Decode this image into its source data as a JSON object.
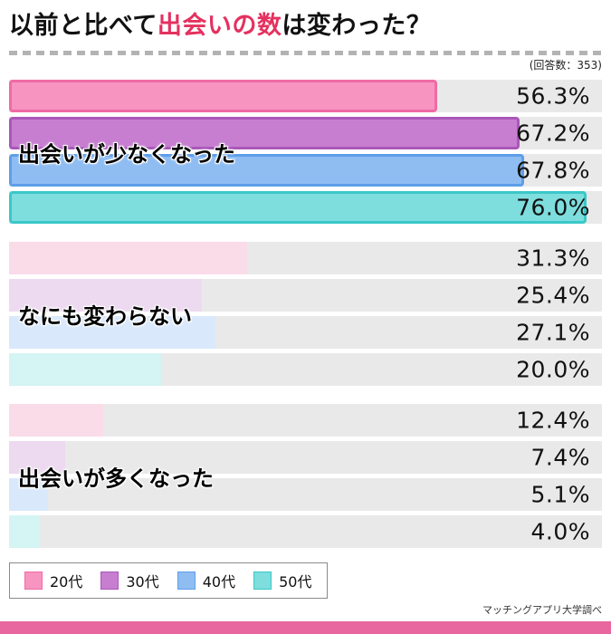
{
  "title": {
    "prefix": "以前と比べて",
    "highlight": "出会いの数",
    "suffix": "は変わった？",
    "highlight_color": "#e4315f"
  },
  "meta": {
    "response_count": "(回答数：353)",
    "source": "マッチングアプリ大学調べ"
  },
  "chart_data": {
    "type": "bar",
    "orientation": "horizontal",
    "title": "以前と比べて出会いの数は変わった？",
    "value_suffix": "%",
    "xmax": 78,
    "series": [
      "20代",
      "30代",
      "40代",
      "50代"
    ],
    "series_colors": {
      "strong": [
        "#f794c0",
        "#c77ed1",
        "#8fbdf2",
        "#7edddd"
      ],
      "border": [
        "#ef6ba5",
        "#aa57b9",
        "#5e9ee9",
        "#3bc8c8"
      ],
      "light": [
        "#fadce9",
        "#edd9f0",
        "#d9e9fb",
        "#d5f4f4"
      ]
    },
    "track_color": "#e9e9e9",
    "groups": [
      {
        "label": "出会いが少なくなった",
        "emphasized": true,
        "values": [
          56.3,
          67.2,
          67.8,
          76.0
        ]
      },
      {
        "label": "なにも変わらない",
        "emphasized": false,
        "values": [
          31.3,
          25.4,
          27.1,
          20.0
        ]
      },
      {
        "label": "出会いが多くなった",
        "emphasized": false,
        "values": [
          12.4,
          7.4,
          5.1,
          4.0
        ]
      }
    ]
  },
  "legend": {
    "items": [
      {
        "label": "20代"
      },
      {
        "label": "30代"
      },
      {
        "label": "40代"
      },
      {
        "label": "50代"
      }
    ]
  },
  "footer": {
    "bar_color": "#e7679e"
  }
}
